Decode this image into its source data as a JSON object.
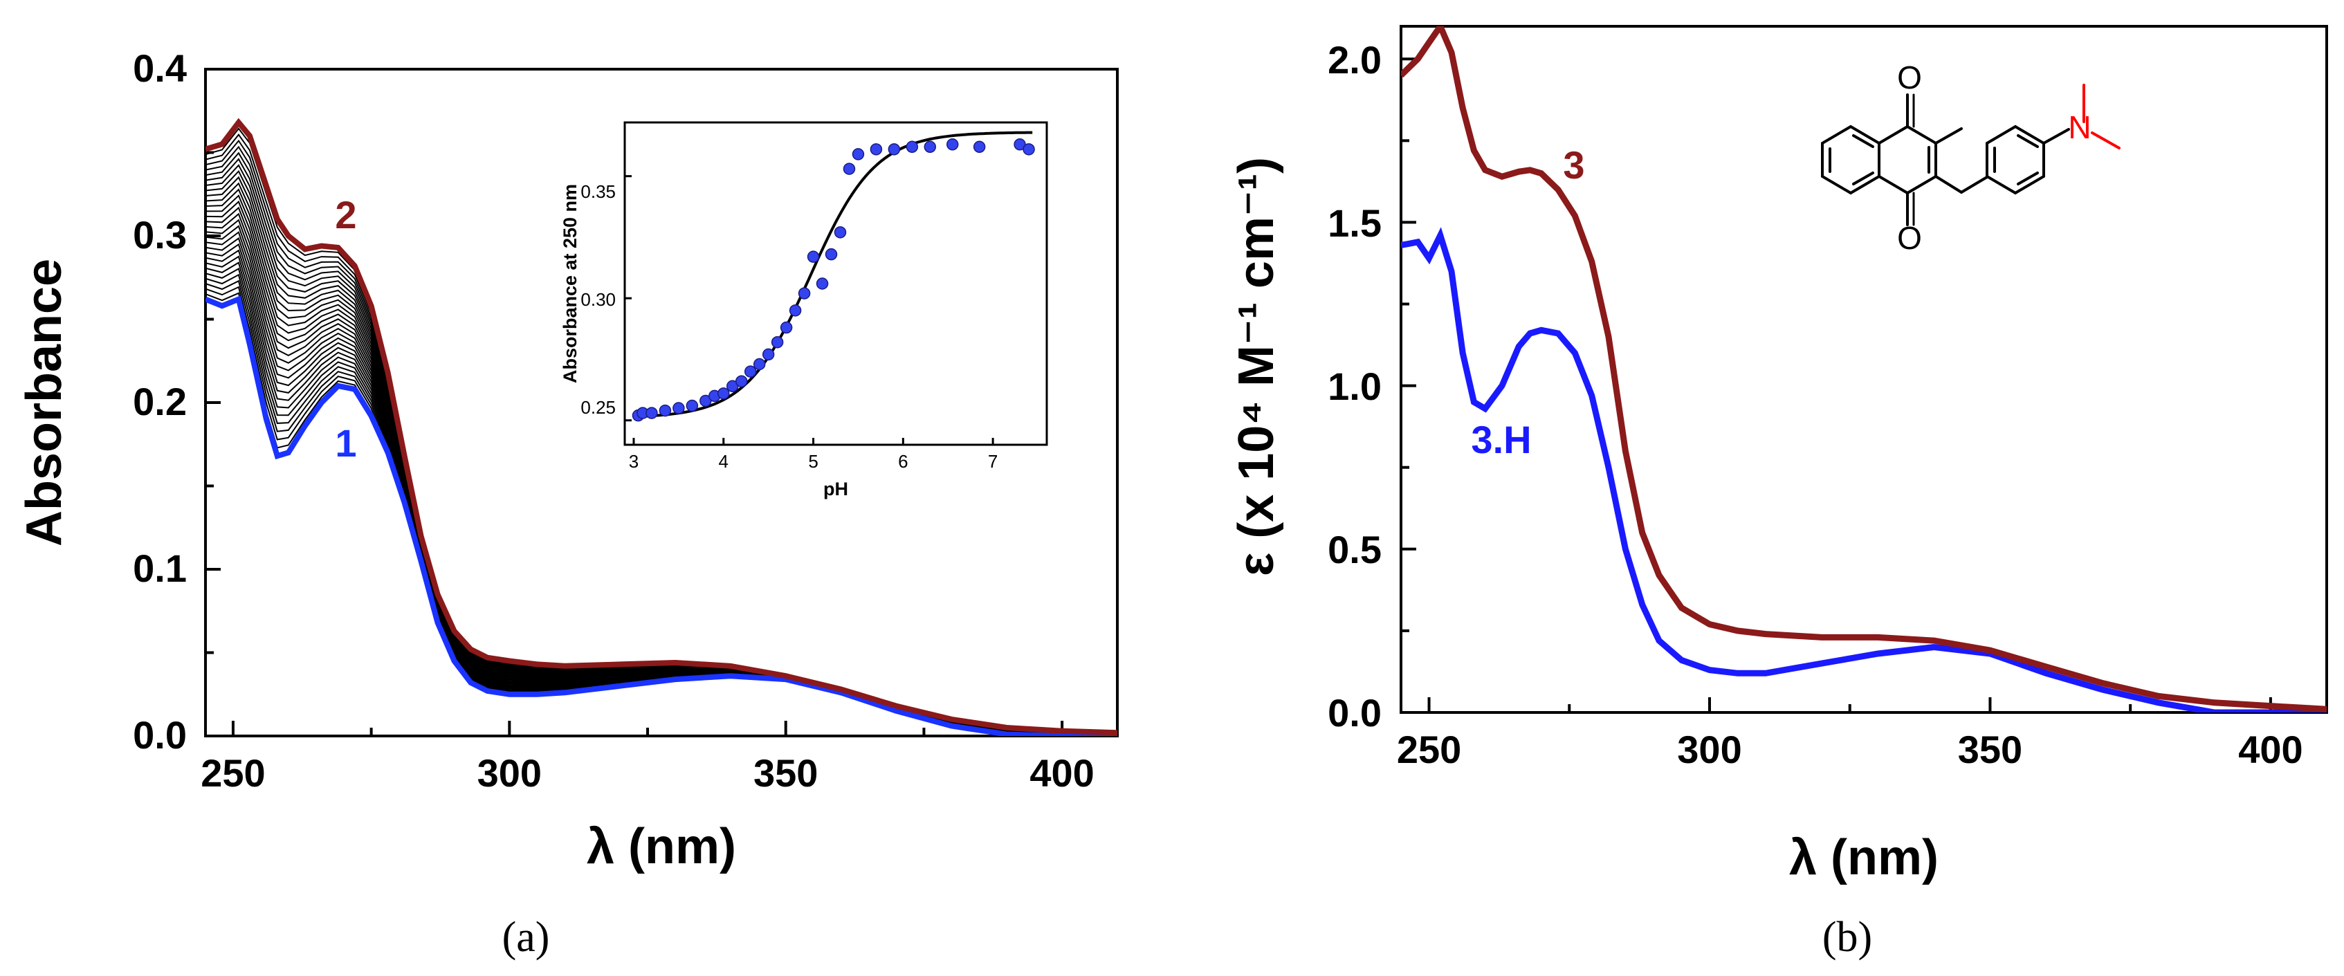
{
  "figure": {
    "panels": [
      {
        "caption": "(a)"
      },
      {
        "caption": "(b)"
      }
    ]
  },
  "chart_data": [
    {
      "id": "a_main",
      "type": "line",
      "title": "",
      "xlabel": "λ (nm)",
      "ylabel": "Absorbance",
      "xlim": [
        245,
        410
      ],
      "ylim": [
        0,
        0.4
      ],
      "xticks": [
        250,
        300,
        350,
        400
      ],
      "yticks": [
        0.0,
        0.1,
        0.2,
        0.3,
        0.4
      ],
      "xticks_labels": [
        "250",
        "300",
        "350",
        "400"
      ],
      "yticks_labels": [
        "0.0",
        "0.1",
        "0.2",
        "0.3",
        "0.4"
      ],
      "grid": false,
      "x": [
        245,
        248,
        251,
        253,
        256,
        258,
        260,
        263,
        266,
        269,
        272,
        275,
        278,
        281,
        284,
        287,
        290,
        293,
        296,
        300,
        305,
        310,
        320,
        330,
        340,
        350,
        360,
        370,
        380,
        390,
        400,
        410
      ],
      "series": [
        {
          "name": "2",
          "label": "2",
          "color": "#8b1a1a",
          "values": [
            0.352,
            0.355,
            0.368,
            0.36,
            0.33,
            0.31,
            0.3,
            0.292,
            0.294,
            0.293,
            0.282,
            0.258,
            0.218,
            0.168,
            0.12,
            0.085,
            0.063,
            0.052,
            0.047,
            0.045,
            0.043,
            0.042,
            0.043,
            0.044,
            0.042,
            0.036,
            0.028,
            0.018,
            0.01,
            0.005,
            0.003,
            0.002
          ]
        },
        {
          "name": "1",
          "label": "1",
          "color": "#1a33ff",
          "values": [
            0.262,
            0.258,
            0.262,
            0.235,
            0.19,
            0.168,
            0.17,
            0.186,
            0.2,
            0.21,
            0.208,
            0.192,
            0.17,
            0.14,
            0.105,
            0.068,
            0.045,
            0.032,
            0.027,
            0.025,
            0.025,
            0.026,
            0.03,
            0.034,
            0.036,
            0.034,
            0.026,
            0.015,
            0.006,
            0.001,
            0.0,
            0.0
          ]
        }
      ],
      "intermediate_count": 28,
      "intermediate_color": "#000000"
    },
    {
      "id": "a_inset",
      "type": "scatter",
      "xlabel": "pH",
      "ylabel": "Absorbance at 250 nm",
      "xlim": [
        2.9,
        7.6
      ],
      "ylim": [
        0.24,
        0.372
      ],
      "xticks": [
        3,
        4,
        5,
        6,
        7
      ],
      "yticks": [
        0.25,
        0.3,
        0.35
      ],
      "xticks_labels": [
        "3",
        "4",
        "5",
        "6",
        "7"
      ],
      "yticks_labels": [
        "0.25",
        "0.30",
        "0.35"
      ],
      "grid": false,
      "points_x": [
        3.05,
        3.1,
        3.2,
        3.35,
        3.5,
        3.65,
        3.8,
        3.9,
        4.0,
        4.1,
        4.2,
        4.3,
        4.4,
        4.5,
        4.6,
        4.7,
        4.8,
        4.9,
        5.0,
        5.1,
        5.2,
        5.3,
        5.4,
        5.5,
        5.7,
        5.9,
        6.1,
        6.3,
        6.55,
        6.85,
        7.3,
        7.4
      ],
      "points_y": [
        0.252,
        0.253,
        0.253,
        0.254,
        0.255,
        0.256,
        0.258,
        0.26,
        0.261,
        0.264,
        0.266,
        0.27,
        0.273,
        0.277,
        0.282,
        0.288,
        0.295,
        0.302,
        0.317,
        0.306,
        0.318,
        0.327,
        0.353,
        0.359,
        0.361,
        0.361,
        0.362,
        0.362,
        0.363,
        0.362,
        0.363,
        0.361
      ],
      "points_color": "#3344ee",
      "fit": {
        "type": "sigmoid",
        "bottom": 0.251,
        "top": 0.368,
        "pKa": 4.97,
        "slope": 0.36,
        "color": "#000000"
      }
    },
    {
      "id": "b_main",
      "type": "line",
      "title": "",
      "xlabel": "λ (nm)",
      "ylabel": "ε (x 10⁴ M⁻¹ cm⁻¹)",
      "xlim": [
        245,
        410
      ],
      "ylim": [
        0,
        2.1
      ],
      "xticks": [
        250,
        300,
        350,
        400
      ],
      "yticks": [
        0.0,
        0.5,
        1.0,
        1.5,
        2.0
      ],
      "xticks_labels": [
        "250",
        "300",
        "350",
        "400"
      ],
      "yticks_labels": [
        "0.0",
        "0.5",
        "1.0",
        "1.5",
        "2.0"
      ],
      "grid": false,
      "x": [
        245,
        248,
        250,
        252,
        254,
        256,
        258,
        260,
        263,
        266,
        268,
        270,
        273,
        276,
        279,
        282,
        285,
        288,
        291,
        295,
        300,
        305,
        310,
        320,
        330,
        340,
        350,
        360,
        370,
        380,
        390,
        400,
        410
      ],
      "series": [
        {
          "name": "3",
          "label": "3",
          "color": "#8b1a1a",
          "values": [
            1.95,
            2.0,
            2.05,
            2.1,
            2.02,
            1.85,
            1.72,
            1.66,
            1.64,
            1.655,
            1.66,
            1.65,
            1.6,
            1.52,
            1.38,
            1.15,
            0.8,
            0.55,
            0.42,
            0.32,
            0.27,
            0.25,
            0.24,
            0.23,
            0.23,
            0.22,
            0.19,
            0.14,
            0.09,
            0.05,
            0.03,
            0.02,
            0.01
          ]
        },
        {
          "name": "3.H",
          "label": "3.H",
          "color": "#1a1aff",
          "values": [
            1.43,
            1.44,
            1.39,
            1.46,
            1.35,
            1.1,
            0.95,
            0.93,
            1.0,
            1.12,
            1.16,
            1.17,
            1.16,
            1.1,
            0.97,
            0.75,
            0.5,
            0.33,
            0.22,
            0.16,
            0.13,
            0.12,
            0.12,
            0.15,
            0.18,
            0.2,
            0.18,
            0.12,
            0.07,
            0.03,
            0.0,
            0.0,
            0.0
          ]
        }
      ]
    }
  ],
  "structure": {
    "atoms": [
      "O",
      "O",
      "N"
    ],
    "colors": {
      "bonds": "#000000",
      "nitrogen": "#ff0000"
    }
  }
}
